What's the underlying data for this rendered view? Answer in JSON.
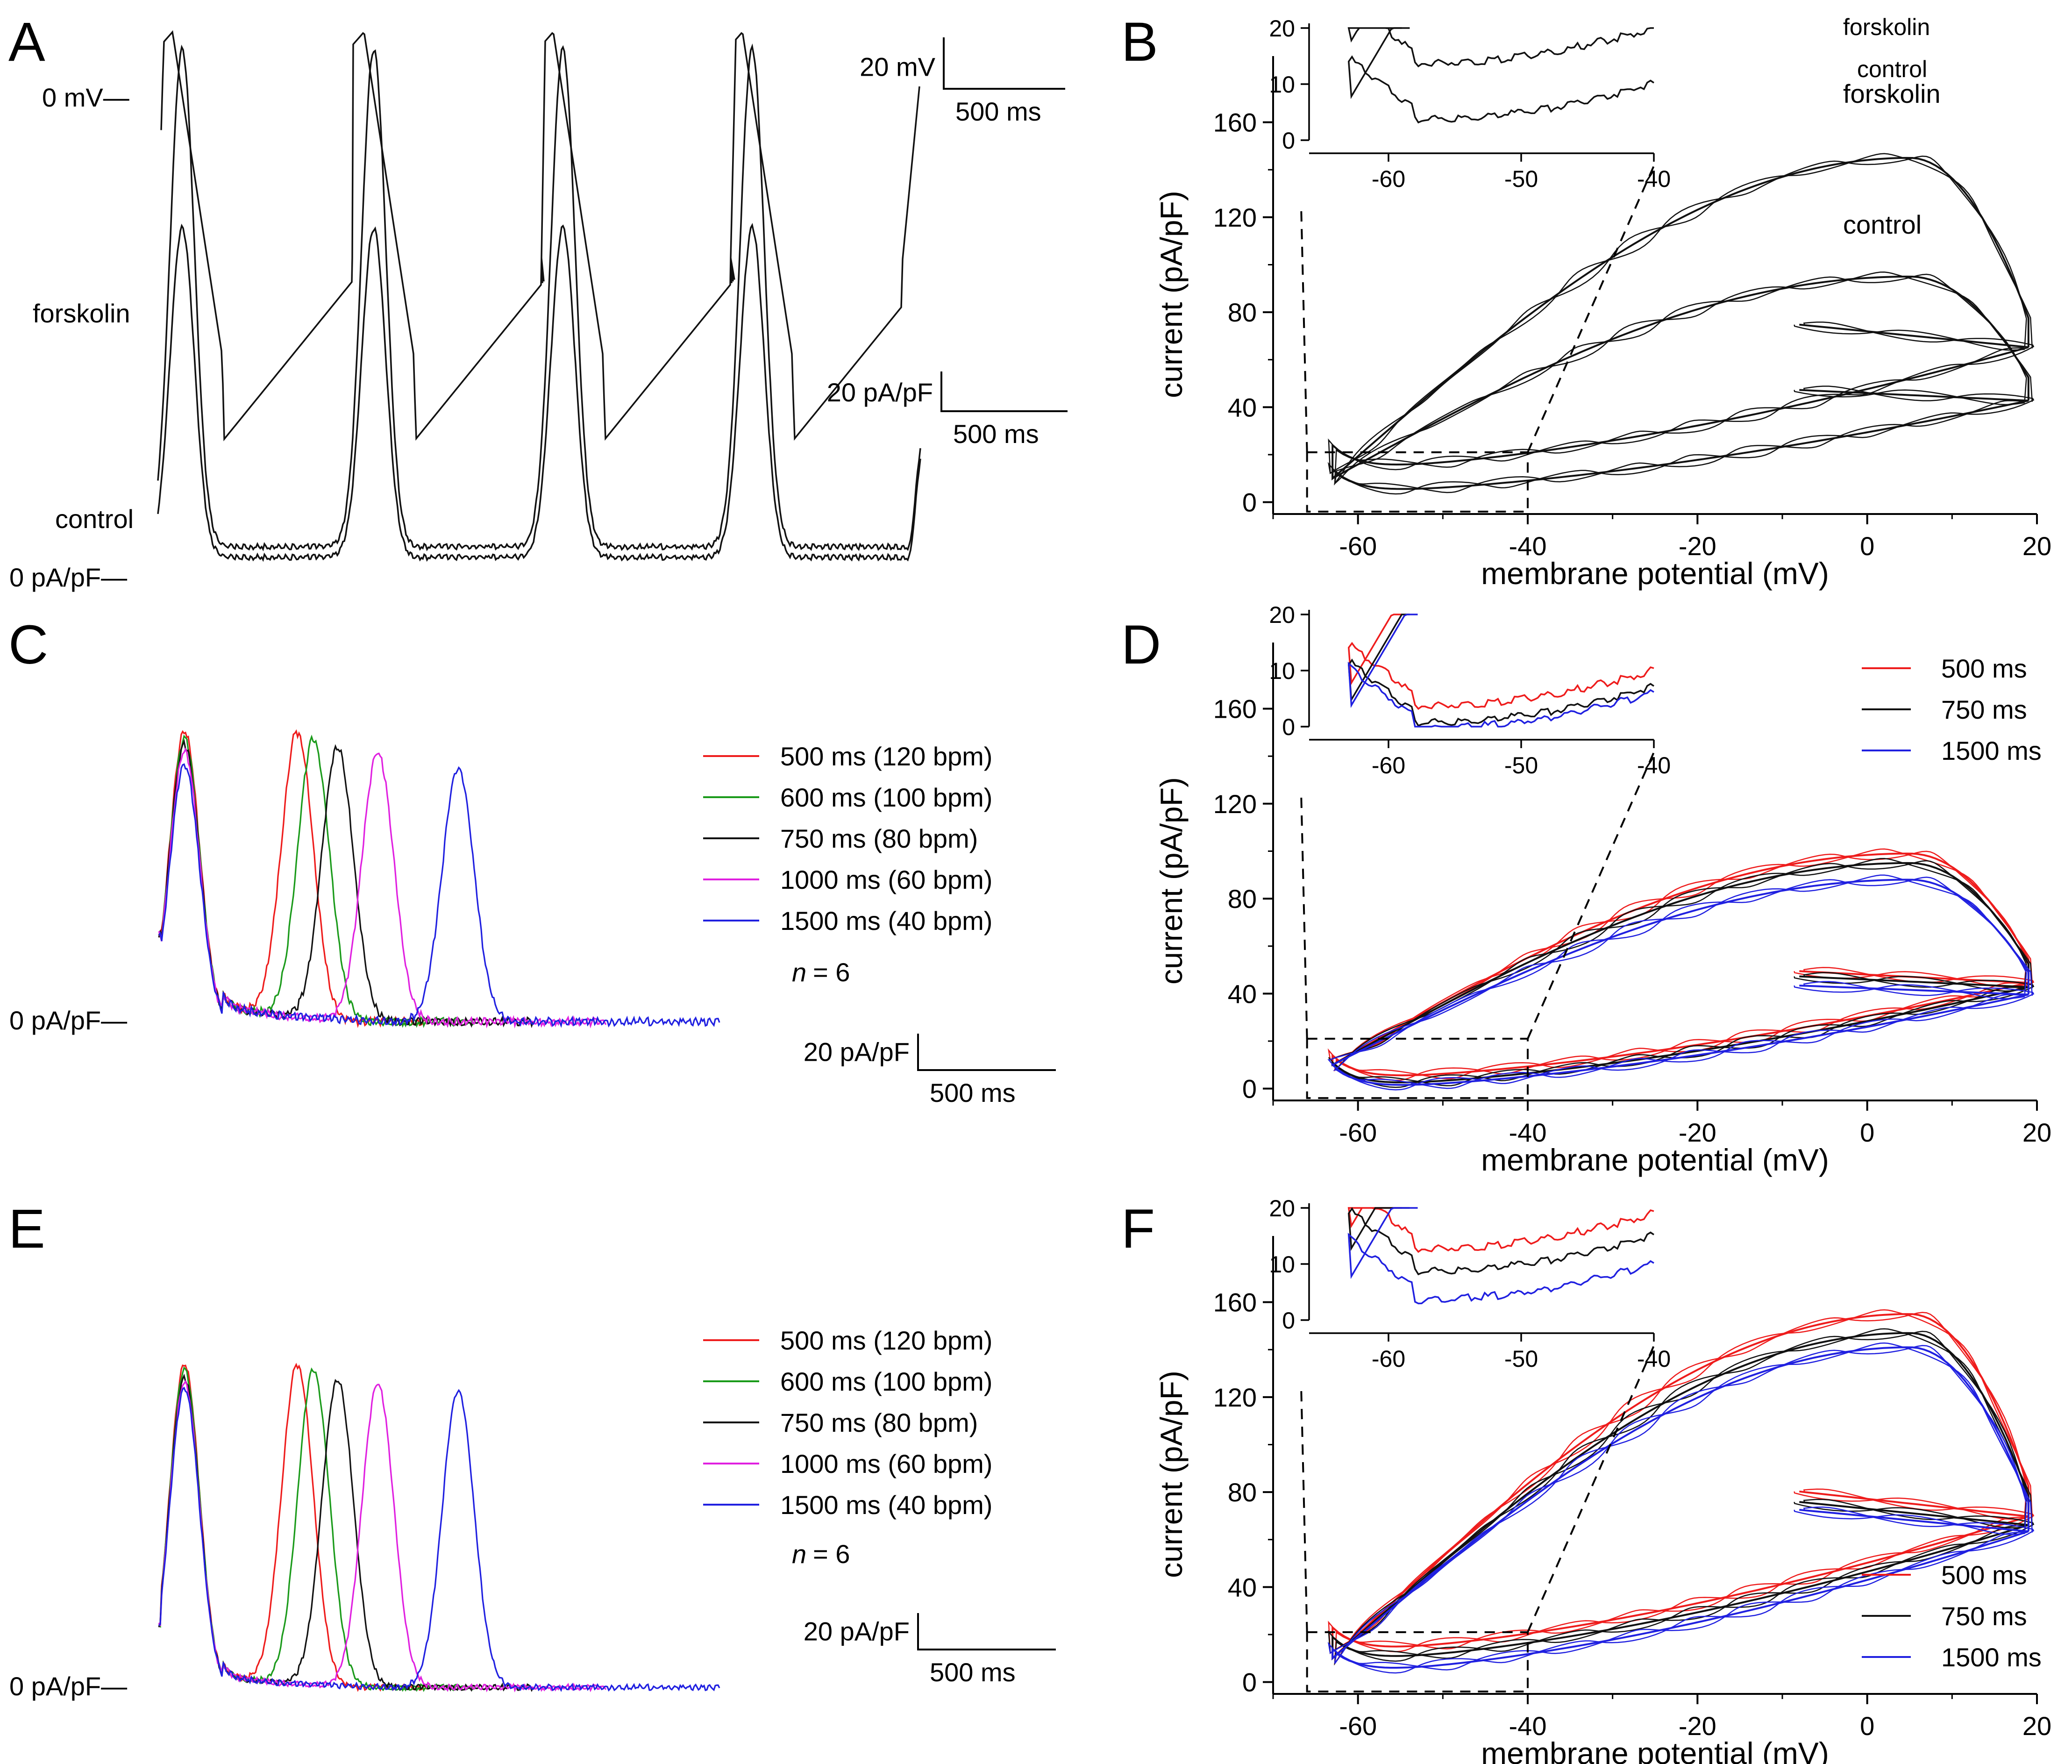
{
  "panels": [
    {
      "id": "A",
      "label": "A"
    },
    {
      "id": "B",
      "label": "B"
    },
    {
      "id": "C",
      "label": "C"
    },
    {
      "id": "D",
      "label": "D"
    },
    {
      "id": "E",
      "label": "E"
    },
    {
      "id": "F",
      "label": "F"
    }
  ],
  "colors": {
    "red": "#ee1c1c",
    "green": "#1a9a1a",
    "black": "#111111",
    "magenta": "#e020e0",
    "blue": "#2020e0"
  },
  "chart_data": [
    {
      "id": "A",
      "type": "line",
      "title": "",
      "voltage_trace": {
        "zero_label": "0 mV—",
        "scale_y": "20 mV",
        "scale_x": "500 ms",
        "cycles": 4,
        "period_ms": 750,
        "peak_mV": 12,
        "min_mV": -64
      },
      "current_traces": [
        {
          "name": "forskolin",
          "peak": 146,
          "baseline": 4
        },
        {
          "name": "control",
          "peak": 95,
          "baseline": 1
        }
      ],
      "zero_current_label": "0 pA/pF—",
      "scale_y": "20 pA/pF",
      "scale_x": "500 ms"
    },
    {
      "id": "B",
      "type": "line",
      "xlabel": "membrane potential (mV)",
      "ylabel": "current (pA/pF)",
      "xlim": [
        -70,
        20
      ],
      "ylim": [
        -5,
        180
      ],
      "xticks": [
        "-60",
        "-40",
        "-20",
        "0",
        "20"
      ],
      "yticks": [
        "0",
        "40",
        "80",
        "120",
        "160"
      ],
      "series": [
        {
          "name": "forskolin",
          "peak_current": 145,
          "min_current": 14
        },
        {
          "name": "control",
          "peak_current": 95,
          "min_current": 4
        }
      ],
      "inset": {
        "xlim": [
          -65,
          -40
        ],
        "ylim": [
          0,
          20
        ],
        "xticks": [
          "-60",
          "-50",
          "-40"
        ],
        "yticks": [
          "0",
          "10",
          "20"
        ]
      }
    },
    {
      "id": "C",
      "type": "line",
      "zero_label": "0 pA/pF—",
      "scale_y": "20 pA/pF",
      "scale_x": "500 ms",
      "n_label": "n",
      "n_value": "= 6",
      "series": [
        {
          "name": "500 ms (120 bpm)",
          "color": "red",
          "cl_ms": 500,
          "peak": 100
        },
        {
          "name": "600 ms (100 bpm)",
          "color": "green",
          "cl_ms": 600,
          "peak": 97
        },
        {
          "name": "750 ms (80 bpm)",
          "color": "black",
          "cl_ms": 750,
          "peak": 95
        },
        {
          "name": "1000 ms (60 bpm)",
          "color": "magenta",
          "cl_ms": 1000,
          "peak": 93
        },
        {
          "name": "1500 ms (40 bpm)",
          "color": "blue",
          "cl_ms": 1500,
          "peak": 88
        }
      ]
    },
    {
      "id": "D",
      "type": "line",
      "xlabel": "membrane potential (mV)",
      "ylabel": "current (pA/pF)",
      "xlim": [
        -70,
        20
      ],
      "ylim": [
        -5,
        180
      ],
      "xticks": [
        "-60",
        "-40",
        "-20",
        "0",
        "20"
      ],
      "yticks": [
        "0",
        "40",
        "80",
        "120",
        "160"
      ],
      "series": [
        {
          "name": "500 ms",
          "color": "red",
          "peak_current": 99,
          "min_current": 4
        },
        {
          "name": "750 ms",
          "color": "black",
          "peak_current": 95,
          "min_current": 1
        },
        {
          "name": "1500 ms",
          "color": "blue",
          "peak_current": 88,
          "min_current": 0
        }
      ],
      "inset": {
        "xlim": [
          -65,
          -40
        ],
        "ylim": [
          0,
          20
        ],
        "xticks": [
          "-60",
          "-50",
          "-40"
        ],
        "yticks": [
          "0",
          "10",
          "20"
        ]
      }
    },
    {
      "id": "E",
      "type": "line",
      "zero_label": "0 pA/pF—",
      "scale_y": "20 pA/pF",
      "scale_x": "500 ms",
      "n_label": "n",
      "n_value": "= 6",
      "series": [
        {
          "name": "500 ms (120 bpm)",
          "color": "red",
          "cl_ms": 500,
          "peak": 155
        },
        {
          "name": "600 ms (100 bpm)",
          "color": "green",
          "cl_ms": 600,
          "peak": 152
        },
        {
          "name": "750 ms (80 bpm)",
          "color": "black",
          "cl_ms": 750,
          "peak": 148
        },
        {
          "name": "1000 ms (60 bpm)",
          "color": "magenta",
          "cl_ms": 1000,
          "peak": 146
        },
        {
          "name": "1500 ms (40 bpm)",
          "color": "blue",
          "cl_ms": 1500,
          "peak": 143
        }
      ]
    },
    {
      "id": "F",
      "type": "line",
      "xlabel": "membrane potential (mV)",
      "ylabel": "current (pA/pF)",
      "xlim": [
        -70,
        20
      ],
      "ylim": [
        -5,
        180
      ],
      "xticks": [
        "-60",
        "-40",
        "-20",
        "0",
        "20"
      ],
      "yticks": [
        "0",
        "40",
        "80",
        "120",
        "160"
      ],
      "series": [
        {
          "name": "500 ms",
          "color": "red",
          "peak_current": 155,
          "min_current": 13
        },
        {
          "name": "750 ms",
          "color": "black",
          "peak_current": 147,
          "min_current": 9
        },
        {
          "name": "1500 ms",
          "color": "blue",
          "peak_current": 141,
          "min_current": 4
        }
      ],
      "inset": {
        "xlim": [
          -65,
          -40
        ],
        "ylim": [
          0,
          20
        ],
        "xticks": [
          "-60",
          "-50",
          "-40"
        ],
        "yticks": [
          "0",
          "10",
          "20"
        ]
      }
    }
  ]
}
